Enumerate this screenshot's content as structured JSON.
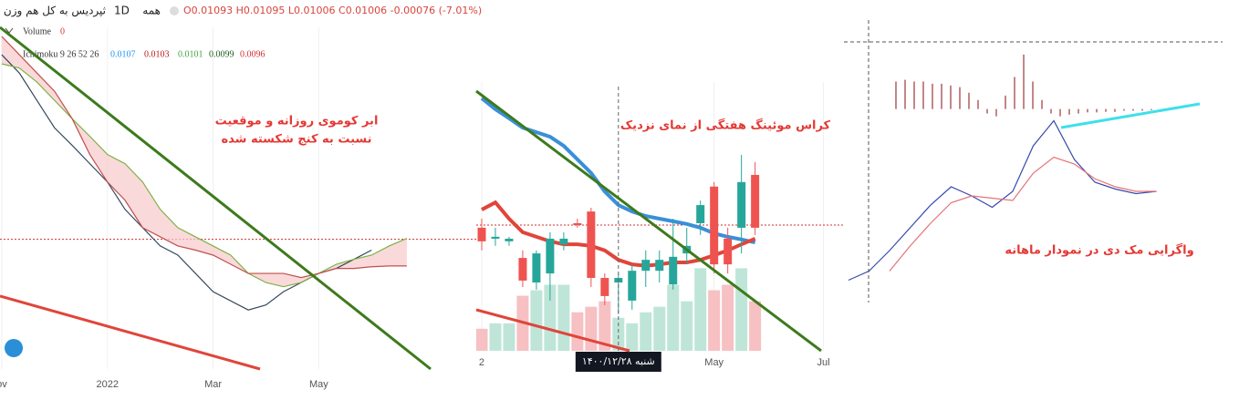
{
  "header": {
    "symbol": "ثپردیس به کل هم وزن",
    "interval": "1D",
    "exchange": "همه",
    "ohlc": "O0.01093 H0.01095 L0.01006 C0.01006 -0.00076 (-7.01%)",
    "volume_label": "Volume",
    "volume_value": 0,
    "ichimoku_label": "Ichimoku 9 26 52 26",
    "ichimoku_values": [
      {
        "value": 0.0107,
        "color": "#2196f3"
      },
      {
        "value": 0.0103,
        "color": "#b71c1c"
      },
      {
        "value": 0.0101,
        "color": "#43a047"
      },
      {
        "value": 0.0099,
        "color": "#1b5e20"
      },
      {
        "value": 0.0096,
        "color": "#d32f2f"
      }
    ]
  },
  "chart_data": [
    {
      "type": "line",
      "x": [
        0,
        1,
        2,
        3,
        4,
        5,
        6,
        7,
        8,
        9,
        10,
        11,
        12,
        13,
        14,
        15,
        16,
        17,
        18,
        19,
        20,
        21,
        22,
        23
      ],
      "xlim": [
        -0.1,
        27.1
      ],
      "ylim": [
        0.0085,
        0.0125
      ],
      "xticks": [
        {
          "value": 0,
          "label": "ov"
        },
        {
          "value": 6,
          "label": "2022"
        },
        {
          "value": 12,
          "label": "Mar"
        },
        {
          "value": 18,
          "label": "May"
        }
      ],
      "series": [
        {
          "color": "#34495e",
          "values": [
            0.01228,
            0.01206,
            0.01173,
            0.0114,
            0.01119,
            0.01097,
            0.01075,
            0.01042,
            0.0102,
            0.00998,
            0.00987,
            0.00965,
            0.00943,
            0.00932,
            0.00921,
            0.00927,
            0.00943,
            0.00954,
            0.00965,
            0.00971,
            0.00982,
            0.00993,
            null,
            null
          ]
        },
        {
          "color": "#7cb342",
          "values": [
            0.01217,
            0.01212,
            0.01195,
            0.01173,
            0.01151,
            0.0113,
            0.01108,
            0.01097,
            0.01075,
            0.01042,
            0.0102,
            0.01009,
            0.00998,
            0.00987,
            0.00965,
            0.00954,
            0.00949,
            0.00954,
            0.00965,
            0.00976,
            0.00982,
            0.00987,
            0.00998,
            0.01007
          ]
        },
        {
          "color": "#c0504d",
          "values": [
            0.0125,
            0.01228,
            0.01206,
            0.01184,
            0.01151,
            0.01108,
            0.01075,
            0.01053,
            0.0102,
            0.01009,
            0.00998,
            0.00993,
            0.00987,
            0.00976,
            0.00965,
            0.00965,
            0.00965,
            0.0096,
            0.00965,
            0.00971,
            0.00971,
            0.00973,
            0.00974,
            0.00974
          ]
        }
      ],
      "cloud_color": "#f8c9cc",
      "last_price": 0.01006,
      "last_price_color": "#d32f2f",
      "annotation": [
        "ابر کوموی روزانه و موقعیت",
        "نسبت به کنج شکسته شده"
      ],
      "annotation_color": "#e53935"
    },
    {
      "type": "candlestick",
      "x": [
        0,
        1,
        2,
        3,
        4,
        5,
        6,
        7,
        8,
        9,
        10,
        11,
        12,
        13,
        14,
        15,
        16,
        17,
        18,
        19,
        20
      ],
      "xlim": [
        -0.4,
        26.5
      ],
      "ylim": [
        0.008,
        0.015
      ],
      "xticks": [
        {
          "value": 0,
          "label": "2"
        },
        {
          "value": 17,
          "label": "May"
        },
        {
          "value": 25,
          "label": "Jul"
        }
      ],
      "open": [
        0.01126,
        0.01097,
        0.0109,
        0.01046,
        0.00981,
        0.01005,
        0.01082,
        0.01138,
        0.01169,
        0.00993,
        0.00981,
        0.00933,
        0.01012,
        0.01012,
        0.00976,
        0.01058,
        0.01138,
        0.01235,
        0.01097,
        0.01126,
        0.01266
      ],
      "high": [
        0.0115,
        0.01126,
        0.01102,
        0.01066,
        0.01066,
        0.01114,
        0.01114,
        0.0115,
        0.01179,
        0.01005,
        0.01005,
        0.01029,
        0.01066,
        0.01066,
        0.0115,
        0.01126,
        0.01198,
        0.01247,
        0.01126,
        0.01319,
        0.013
      ],
      "low": [
        0.01066,
        0.01078,
        0.01078,
        0.00969,
        0.00962,
        0.00933,
        0.01066,
        0.01126,
        0.00969,
        0.00921,
        0.00897,
        0.00909,
        0.00969,
        0.00981,
        0.00962,
        0.01029,
        0.01107,
        0.01005,
        0.01005,
        0.01058,
        0.01107
      ],
      "close": [
        0.0109,
        0.01102,
        0.01097,
        0.00986,
        0.01058,
        0.01097,
        0.01097,
        0.01133,
        0.00993,
        0.00945,
        0.00993,
        0.01012,
        0.01041,
        0.01041,
        0.01049,
        0.01078,
        0.01186,
        0.01029,
        0.01029,
        0.01247,
        0.01126
      ],
      "up_color": "#26a69a",
      "down_color": "#ef5350",
      "volume": [
        20,
        25,
        25,
        50,
        55,
        60,
        60,
        35,
        40,
        45,
        30,
        25,
        35,
        40,
        60,
        45,
        75,
        55,
        60,
        75,
        45
      ],
      "volume_ylim": [
        0,
        240
      ],
      "volume_up_color": "#bfe5d9",
      "volume_down_color": "#f7c0c2",
      "series": [
        {
          "color": "#3a8fd9",
          "values": [
            0.01469,
            0.0144,
            0.01416,
            0.01391,
            0.01379,
            0.01367,
            0.01343,
            0.01307,
            0.01271,
            0.01222,
            0.01186,
            0.01169,
            0.01157,
            0.0115,
            0.01143,
            0.01136,
            0.01126,
            0.01111,
            0.01102,
            0.01095,
            0.01087
          ]
        },
        {
          "color": "#e0453a",
          "values": [
            0.01174,
            0.01193,
            0.0115,
            0.01114,
            0.01102,
            0.0109,
            0.01082,
            0.01082,
            0.01078,
            0.01066,
            0.01041,
            0.01029,
            0.01025,
            0.01029,
            0.01034,
            0.01034,
            0.01041,
            0.01053,
            0.01066,
            0.01082,
            0.01097
          ]
        }
      ],
      "last_price": 0.01133,
      "last_price_color": "#d32f2f",
      "crosshair_x": 10,
      "crosshair_label": "شنبه ۱۴۰۰/۱۲/۲۸",
      "annotation": [
        "کراس موئینگ هفتگی از نمای نزدیک"
      ],
      "annotation_color": "#e53935"
    },
    {
      "type": "bar",
      "x": [
        0,
        1,
        2,
        3,
        4,
        5,
        6,
        7,
        8,
        9,
        10,
        11,
        12,
        13,
        14,
        15,
        16,
        17,
        18,
        19,
        20,
        21,
        22,
        23,
        24,
        25,
        26,
        27,
        28
      ],
      "xlim": [
        -5.7,
        36.3
      ],
      "ylim": [
        -0.0002,
        0.001
      ],
      "color": "#b5686b",
      "values": [
        0.00049,
        0.00052,
        0.00049,
        0.00049,
        0.00045,
        0.00045,
        0.00042,
        0.00039,
        0.00029,
        0.00016,
        -8e-05,
        -0.00013,
        0.00024,
        0.00057,
        0.00097,
        0.00049,
        0.00016,
        -8e-05,
        -0.00013,
        -0.0001,
        -8e-05,
        -6e-05,
        -6e-05,
        -5e-05,
        -5e-05,
        -3e-05,
        -3e-05,
        -3e-05,
        -2e-05
      ]
    },
    {
      "type": "line",
      "x": [
        0,
        1,
        2,
        3,
        4,
        5,
        6,
        7,
        8,
        9,
        10,
        11,
        12,
        13,
        14,
        15
      ],
      "xlim": [
        -0.22,
        18.44
      ],
      "ylim": [
        -0.0004,
        0.0012
      ],
      "series": [
        {
          "color": "#3949ab",
          "values": [
            -0.0003,
            -0.00022,
            -4e-05,
            0.00016,
            0.00036,
            0.00052,
            0.00044,
            0.00034,
            0.00048,
            0.00088,
            0.0011,
            0.00076,
            0.00056,
            0.0005,
            0.00046,
            0.00048
          ]
        },
        {
          "color": "#e57373",
          "values": [
            null,
            null,
            -0.00022,
            0,
            0.0002,
            0.00038,
            0.00044,
            0.00042,
            0.0004,
            0.00064,
            0.00078,
            0.00072,
            0.00059,
            0.00052,
            0.00048,
            0.00048
          ]
        }
      ],
      "annotation": [
        "واگرایی مک دی در نمودار ماهانه"
      ],
      "annotation_color": "#e53935"
    }
  ]
}
